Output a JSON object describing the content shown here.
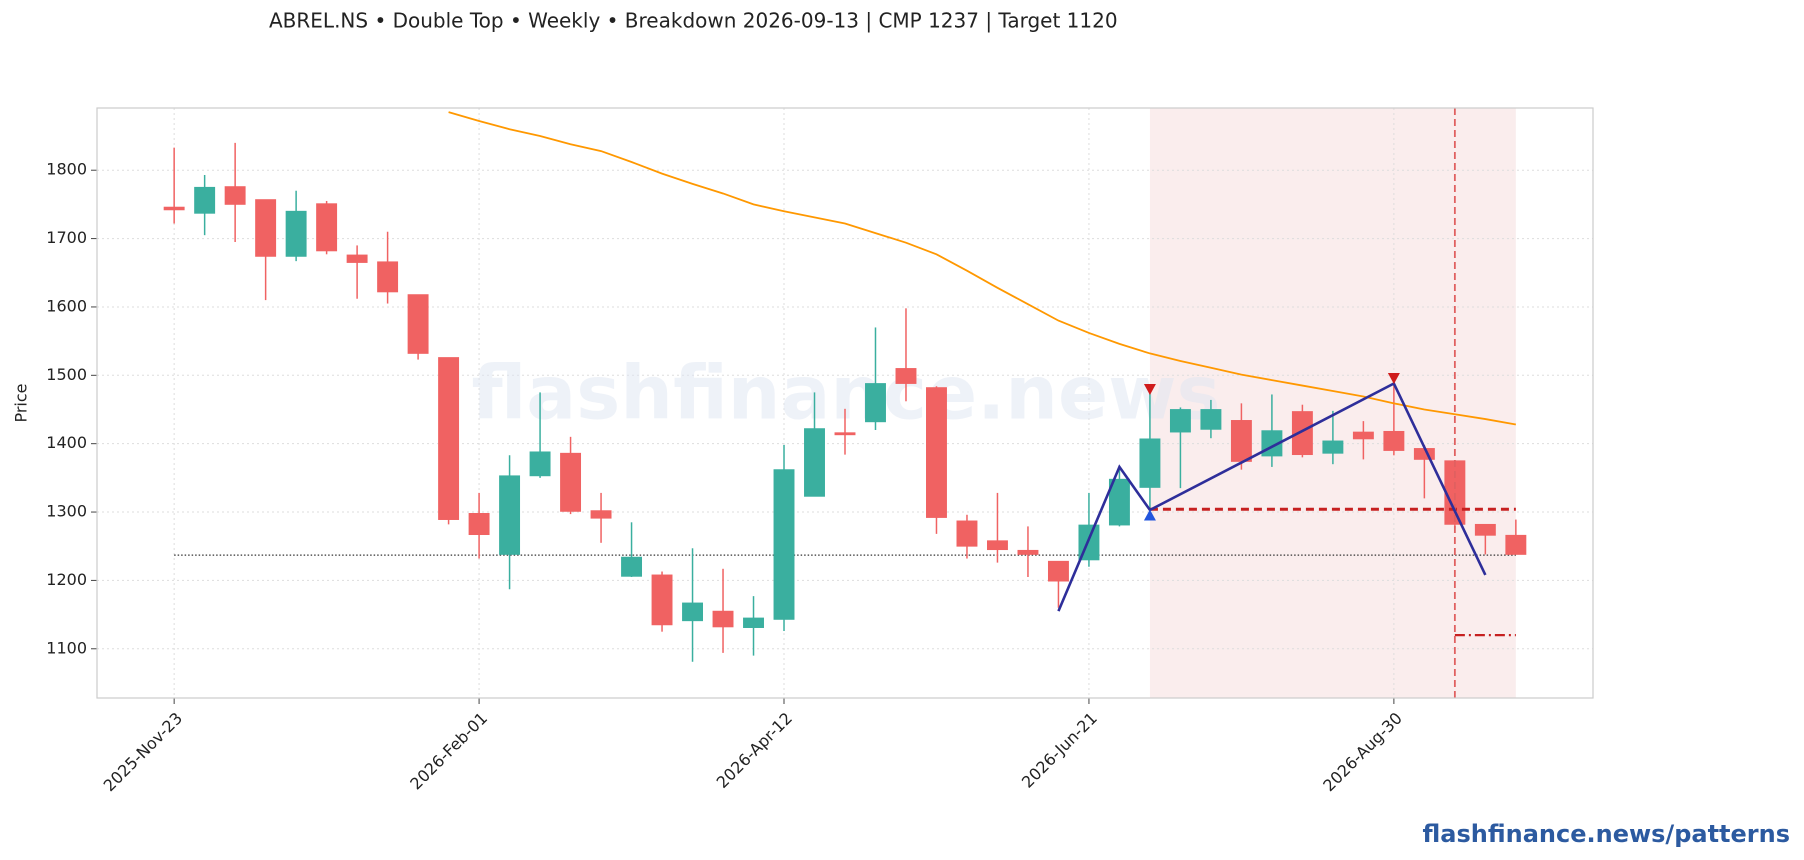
{
  "chart_data": {
    "type": "candlestick",
    "title": "ABREL.NS  •  Double Top  •  Weekly  •  Breakdown 2026-09-13  |  CMP 1237  |  Target 1120",
    "ylabel": "Price",
    "watermark": "flashfinance.news",
    "footer": "flashfinance.news/patterns",
    "categories": [
      "2025-Nov-23",
      null,
      null,
      null,
      null,
      null,
      null,
      null,
      null,
      null,
      "2026-Feb-01",
      null,
      null,
      null,
      null,
      null,
      null,
      null,
      null,
      null,
      "2026-Apr-12",
      null,
      null,
      null,
      null,
      null,
      null,
      null,
      null,
      null,
      "2026-Jun-21",
      null,
      null,
      null,
      null,
      null,
      null,
      null,
      null,
      null,
      "2026-Aug-30",
      null,
      null,
      null,
      null
    ],
    "open": [
      1746,
      1737,
      1776,
      1757,
      1674,
      1751,
      1676,
      1666,
      1618,
      1526,
      1298,
      1238,
      1353,
      1386,
      1302,
      1206,
      1208,
      1141,
      1155,
      1131,
      1143,
      1323,
      1416,
      1432,
      1510,
      1482,
      1287,
      1258,
      1244,
      1228,
      1230,
      1281,
      1336,
      1417,
      1421,
      1434,
      1382,
      1447,
      1386,
      1417,
      1418,
      1393,
      1375,
      1282,
      1266
    ],
    "high": [
      1833,
      1793,
      1840,
      1757,
      1770,
      1755,
      1690,
      1710,
      1618,
      1526,
      1328,
      1383,
      1475,
      1410,
      1328,
      1285,
      1213,
      1247,
      1217,
      1177,
      1398,
      1475,
      1451,
      1570,
      1598,
      1484,
      1296,
      1328,
      1279,
      1228,
      1328,
      1366,
      1475,
      1453,
      1464,
      1459,
      1472,
      1457,
      1448,
      1433,
      1488,
      1398,
      1375,
      1282,
      1289
    ],
    "low": [
      1722,
      1705,
      1695,
      1610,
      1667,
      1677,
      1612,
      1605,
      1523,
      1282,
      1232,
      1187,
      1350,
      1297,
      1255,
      1205,
      1125,
      1081,
      1094,
      1090,
      1126,
      1323,
      1384,
      1420,
      1462,
      1268,
      1232,
      1226,
      1205,
      1160,
      1220,
      1279,
      1303,
      1335,
      1408,
      1362,
      1366,
      1380,
      1370,
      1377,
      1383,
      1320,
      1276,
      1238,
      1238
    ],
    "close": [
      1742,
      1775,
      1750,
      1674,
      1740,
      1682,
      1665,
      1622,
      1532,
      1289,
      1267,
      1353,
      1388,
      1301,
      1291,
      1234,
      1135,
      1167,
      1132,
      1145,
      1362,
      1422,
      1413,
      1488,
      1488,
      1292,
      1250,
      1245,
      1238,
      1199,
      1281,
      1348,
      1407,
      1450,
      1450,
      1374,
      1419,
      1384,
      1404,
      1407,
      1390,
      1377,
      1282,
      1266,
      1238
    ],
    "up_color": "#3aaf9f",
    "down_color": "#f06262",
    "moving_average": {
      "color": "#ff9800",
      "values": [
        null,
        null,
        null,
        null,
        null,
        null,
        null,
        null,
        null,
        1885,
        1872,
        1860,
        1850,
        1838,
        1828,
        1812,
        1795,
        1780,
        1766,
        1750,
        1740,
        1731,
        1722,
        1708,
        1694,
        1677,
        1653,
        1628,
        1604,
        1580,
        1562,
        1546,
        1532,
        1521,
        1511,
        1501,
        1493,
        1485,
        1477,
        1469,
        1459,
        1450,
        1443,
        1436,
        1428
      ]
    },
    "pattern": {
      "color": "#2e2e9a",
      "x": [
        29,
        31,
        32,
        40,
        43
      ],
      "values": [
        1155,
        1366,
        1303,
        1488,
        1208
      ]
    },
    "peaks": {
      "color": "#d01c1c",
      "x": [
        32,
        40
      ],
      "values": [
        1480,
        1496
      ]
    },
    "troughs": {
      "color": "#2255dd",
      "x": [
        32
      ],
      "values": [
        1295
      ]
    },
    "neckline": {
      "color": "#c62020",
      "value": 1304,
      "x": [
        32,
        44
      ]
    },
    "target": {
      "color": "#c62020",
      "value": 1120,
      "x": [
        42,
        44
      ]
    },
    "cmp": {
      "color": "#333333",
      "value": 1237
    },
    "breakdown_x": 42,
    "pattern_zone": [
      32,
      44
    ],
    "ylim": [
      1028,
      1891
    ],
    "yticks": [
      1100,
      1200,
      1300,
      1400,
      1500,
      1600,
      1700,
      1800
    ],
    "grid": true
  }
}
